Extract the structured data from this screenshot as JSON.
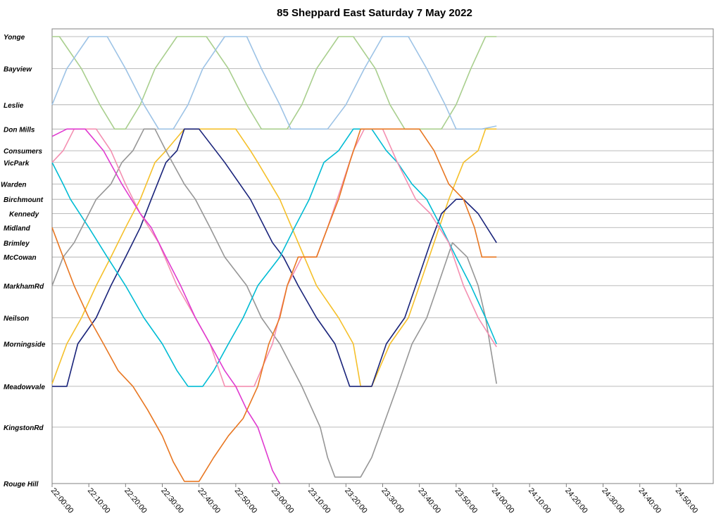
{
  "chart_data": {
    "type": "line",
    "title": "85 Sheppard East Saturday 7 May 2022",
    "xlabel": "",
    "ylabel": "",
    "x_tick_labels": [
      "22:00:00",
      "22:10:00",
      "22:20:00",
      "22:30:00",
      "22:40:00",
      "22:50:00",
      "23:00:00",
      "23:10:00",
      "23:20:00",
      "23:30:00",
      "23:40:00",
      "23:50:00",
      "24:00:00",
      "24:10:00",
      "24:20:00",
      "24:30:00",
      "24:40:00",
      "24:50:00"
    ],
    "x_range_minutes": [
      0,
      180
    ],
    "stops": [
      {
        "name": "Yonge",
        "pos": 0
      },
      {
        "name": "Bayview",
        "pos": 7.4
      },
      {
        "name": "Leslie",
        "pos": 15.7
      },
      {
        "name": "Don Mills",
        "pos": 21.3
      },
      {
        "name": "Consumers",
        "pos": 26.3
      },
      {
        "name": "VicPark",
        "pos": 29.0
      },
      {
        "name": "Warden",
        "pos": 34.0
      },
      {
        "name": "Birchmount",
        "pos": 37.5
      },
      {
        "name": "Kennedy",
        "pos": 40.8
      },
      {
        "name": "Midland",
        "pos": 44.0
      },
      {
        "name": "Brimley",
        "pos": 47.5
      },
      {
        "name": "McCowan",
        "pos": 50.8
      },
      {
        "name": "MarkhamRd",
        "pos": 57.4
      },
      {
        "name": "Neilson",
        "pos": 64.8
      },
      {
        "name": "Morningside",
        "pos": 70.8
      },
      {
        "name": "Meadowvale",
        "pos": 80.6
      },
      {
        "name": "KingstonRd",
        "pos": 90.0
      },
      {
        "name": "Rouge Hill",
        "pos": 103.0
      }
    ],
    "y_range_pos": [
      0,
      103
    ],
    "gridlines": true,
    "legend": "none",
    "series": [
      {
        "color": "#a9cf8e",
        "points": [
          [
            0,
            0
          ],
          [
            2,
            0
          ],
          [
            8,
            7.4
          ],
          [
            13,
            15.7
          ],
          [
            17,
            21.3
          ],
          [
            20,
            21.3
          ],
          [
            24,
            15.7
          ],
          [
            28,
            7.4
          ],
          [
            34,
            0
          ],
          [
            42,
            0
          ],
          [
            48,
            7.4
          ],
          [
            53,
            15.7
          ],
          [
            57,
            21.3
          ],
          [
            64,
            21.3
          ],
          [
            68,
            15.7
          ],
          [
            72,
            7.4
          ],
          [
            78,
            0
          ],
          [
            82,
            0
          ],
          [
            88,
            7.4
          ],
          [
            92,
            15.7
          ],
          [
            96,
            21.3
          ],
          [
            106,
            21.3
          ],
          [
            110,
            15.7
          ],
          [
            114,
            7.4
          ],
          [
            118,
            0
          ],
          [
            121,
            0
          ]
        ]
      },
      {
        "color": "#9dc3e6",
        "points": [
          [
            0,
            15.7
          ],
          [
            4,
            7.4
          ],
          [
            10,
            0
          ],
          [
            15,
            0
          ],
          [
            20,
            7.4
          ],
          [
            25,
            15.7
          ],
          [
            29,
            21.3
          ],
          [
            33,
            21.3
          ],
          [
            37,
            15.7
          ],
          [
            41,
            7.4
          ],
          [
            47,
            0
          ],
          [
            53,
            0
          ],
          [
            57,
            7.4
          ],
          [
            62,
            15.7
          ],
          [
            65,
            21.3
          ],
          [
            75,
            21.3
          ],
          [
            80,
            15.7
          ],
          [
            85,
            7.4
          ],
          [
            90,
            0
          ],
          [
            97,
            0
          ],
          [
            102,
            7.4
          ],
          [
            107,
            15.7
          ],
          [
            110,
            21.3
          ],
          [
            117,
            21.3
          ],
          [
            121,
            20.6
          ]
        ]
      },
      {
        "color": "#f5c02a",
        "points": [
          [
            0,
            80.0
          ],
          [
            4,
            70.8
          ],
          [
            8,
            64.8
          ],
          [
            12,
            57.4
          ],
          [
            16,
            50.8
          ],
          [
            20,
            44.0
          ],
          [
            24,
            37.5
          ],
          [
            28,
            29.0
          ],
          [
            31,
            26.3
          ],
          [
            36,
            21.3
          ],
          [
            50,
            21.3
          ],
          [
            54,
            26.3
          ],
          [
            56,
            29.0
          ],
          [
            62,
            37.5
          ],
          [
            67,
            47.5
          ],
          [
            72,
            57.4
          ],
          [
            78,
            64.8
          ],
          [
            82,
            70.8
          ],
          [
            84,
            80.6
          ],
          [
            87,
            80.6
          ],
          [
            92,
            70.8
          ],
          [
            97,
            64.8
          ],
          [
            100,
            57.4
          ],
          [
            104,
            47.5
          ],
          [
            108,
            37.5
          ],
          [
            112,
            29.0
          ],
          [
            116,
            26.3
          ],
          [
            118,
            21.3
          ],
          [
            121,
            21.3
          ]
        ]
      },
      {
        "color": "#19237a",
        "points": [
          [
            0,
            80.6
          ],
          [
            4,
            80.6
          ],
          [
            7,
            70.8
          ],
          [
            12,
            64.8
          ],
          [
            16,
            57.4
          ],
          [
            20,
            50.8
          ],
          [
            24,
            44.0
          ],
          [
            27,
            37.5
          ],
          [
            31,
            29.0
          ],
          [
            34,
            26.3
          ],
          [
            36,
            21.3
          ],
          [
            40,
            21.3
          ],
          [
            47,
            29.0
          ],
          [
            54,
            37.5
          ],
          [
            60,
            47.5
          ],
          [
            63,
            50.8
          ],
          [
            67,
            57.4
          ],
          [
            72,
            64.8
          ],
          [
            77,
            70.8
          ],
          [
            81,
            80.6
          ],
          [
            87,
            80.6
          ],
          [
            91,
            70.8
          ],
          [
            96,
            64.8
          ],
          [
            99,
            57.4
          ],
          [
            103,
            47.5
          ],
          [
            106,
            40.8
          ],
          [
            110,
            37.5
          ],
          [
            112,
            37.5
          ],
          [
            116,
            40.8
          ],
          [
            121,
            47.5
          ]
        ]
      },
      {
        "color": "#969696",
        "points": [
          [
            0,
            57.4
          ],
          [
            3,
            50.8
          ],
          [
            6,
            47.5
          ],
          [
            12,
            37.5
          ],
          [
            16,
            34.0
          ],
          [
            19,
            29.0
          ],
          [
            22,
            26.3
          ],
          [
            25,
            21.3
          ],
          [
            28,
            21.3
          ],
          [
            31,
            26.3
          ],
          [
            36,
            34.0
          ],
          [
            39,
            37.5
          ],
          [
            43,
            44.0
          ],
          [
            47,
            50.8
          ],
          [
            53,
            57.4
          ],
          [
            57,
            64.8
          ],
          [
            62,
            70.8
          ],
          [
            68,
            80.6
          ],
          [
            73,
            90.0
          ],
          [
            75,
            97.0
          ],
          [
            77,
            101.5
          ],
          [
            84,
            101.5
          ],
          [
            87,
            97.0
          ],
          [
            90,
            90.0
          ],
          [
            94,
            80.6
          ],
          [
            98,
            70.8
          ],
          [
            102,
            64.8
          ],
          [
            105,
            57.4
          ],
          [
            109,
            47.5
          ],
          [
            113,
            50.8
          ],
          [
            116,
            57.4
          ],
          [
            118,
            64.8
          ],
          [
            121,
            80.0
          ]
        ]
      },
      {
        "color": "#00bcd4",
        "points": [
          [
            0,
            29.0
          ],
          [
            3,
            34.0
          ],
          [
            5,
            37.5
          ],
          [
            10,
            44.0
          ],
          [
            15,
            50.8
          ],
          [
            20,
            57.4
          ],
          [
            25,
            64.8
          ],
          [
            30,
            70.8
          ],
          [
            34,
            77.0
          ],
          [
            37,
            80.6
          ],
          [
            41,
            80.6
          ],
          [
            44,
            77.0
          ],
          [
            48,
            70.8
          ],
          [
            52,
            64.8
          ],
          [
            56,
            57.4
          ],
          [
            62,
            50.8
          ],
          [
            66,
            44.0
          ],
          [
            70,
            37.5
          ],
          [
            74,
            29.0
          ],
          [
            78,
            26.3
          ],
          [
            82,
            21.3
          ],
          [
            87,
            21.3
          ],
          [
            91,
            26.3
          ],
          [
            94,
            29.0
          ],
          [
            98,
            34.0
          ],
          [
            102,
            37.5
          ],
          [
            106,
            44.0
          ],
          [
            110,
            50.8
          ],
          [
            114,
            57.4
          ],
          [
            118,
            64.8
          ],
          [
            121,
            70.8
          ]
        ]
      },
      {
        "color": "#f48fb1",
        "points": [
          [
            0,
            29.0
          ],
          [
            3,
            26.3
          ],
          [
            6,
            21.3
          ],
          [
            12,
            21.3
          ],
          [
            16,
            26.3
          ],
          [
            20,
            34.0
          ],
          [
            24,
            40.8
          ],
          [
            29,
            47.5
          ],
          [
            34,
            57.4
          ],
          [
            39,
            64.8
          ],
          [
            43,
            70.8
          ],
          [
            47,
            80.6
          ],
          [
            55,
            80.6
          ],
          [
            60,
            70.8
          ],
          [
            64,
            57.4
          ],
          [
            68,
            50.8
          ],
          [
            72,
            50.8
          ],
          [
            75,
            44.0
          ],
          [
            79,
            34.0
          ],
          [
            82,
            26.3
          ],
          [
            85,
            21.3
          ],
          [
            90,
            21.3
          ],
          [
            94,
            29.0
          ],
          [
            99,
            37.5
          ],
          [
            103,
            40.8
          ],
          [
            108,
            47.5
          ],
          [
            112,
            57.4
          ],
          [
            116,
            64.8
          ],
          [
            121,
            71.5
          ]
        ]
      },
      {
        "color": "#e03ad0",
        "points": [
          [
            0,
            23.0
          ],
          [
            4,
            21.3
          ],
          [
            9,
            21.3
          ],
          [
            14,
            26.3
          ],
          [
            19,
            34.0
          ],
          [
            24,
            40.8
          ],
          [
            27,
            44.0
          ],
          [
            31,
            50.8
          ],
          [
            35,
            57.4
          ],
          [
            39,
            64.8
          ],
          [
            43,
            70.8
          ],
          [
            47,
            77.0
          ],
          [
            50,
            80.6
          ],
          [
            53,
            86.0
          ],
          [
            56,
            90.0
          ],
          [
            58,
            95.0
          ],
          [
            60,
            100.0
          ],
          [
            62,
            103.0
          ]
        ]
      },
      {
        "color": "#e87722",
        "points": [
          [
            0,
            44.0
          ],
          [
            3,
            50.8
          ],
          [
            6,
            57.4
          ],
          [
            10,
            64.8
          ],
          [
            14,
            70.8
          ],
          [
            18,
            77.0
          ],
          [
            22,
            80.6
          ],
          [
            26,
            86.0
          ],
          [
            30,
            92.0
          ],
          [
            33,
            98.0
          ],
          [
            36,
            102.5
          ],
          [
            40,
            102.5
          ],
          [
            44,
            97.0
          ],
          [
            48,
            92.0
          ],
          [
            52,
            88.0
          ],
          [
            56,
            80.6
          ],
          [
            59,
            70.8
          ],
          [
            62,
            64.8
          ],
          [
            64,
            57.4
          ],
          [
            67,
            50.8
          ],
          [
            72,
            50.8
          ],
          [
            75,
            44.0
          ],
          [
            78,
            37.5
          ],
          [
            81,
            29.0
          ],
          [
            84,
            21.3
          ],
          [
            100,
            21.3
          ],
          [
            104,
            26.3
          ],
          [
            108,
            34.0
          ],
          [
            112,
            37.5
          ],
          [
            115,
            44.0
          ],
          [
            117,
            50.8
          ],
          [
            121,
            50.8
          ]
        ]
      }
    ]
  }
}
